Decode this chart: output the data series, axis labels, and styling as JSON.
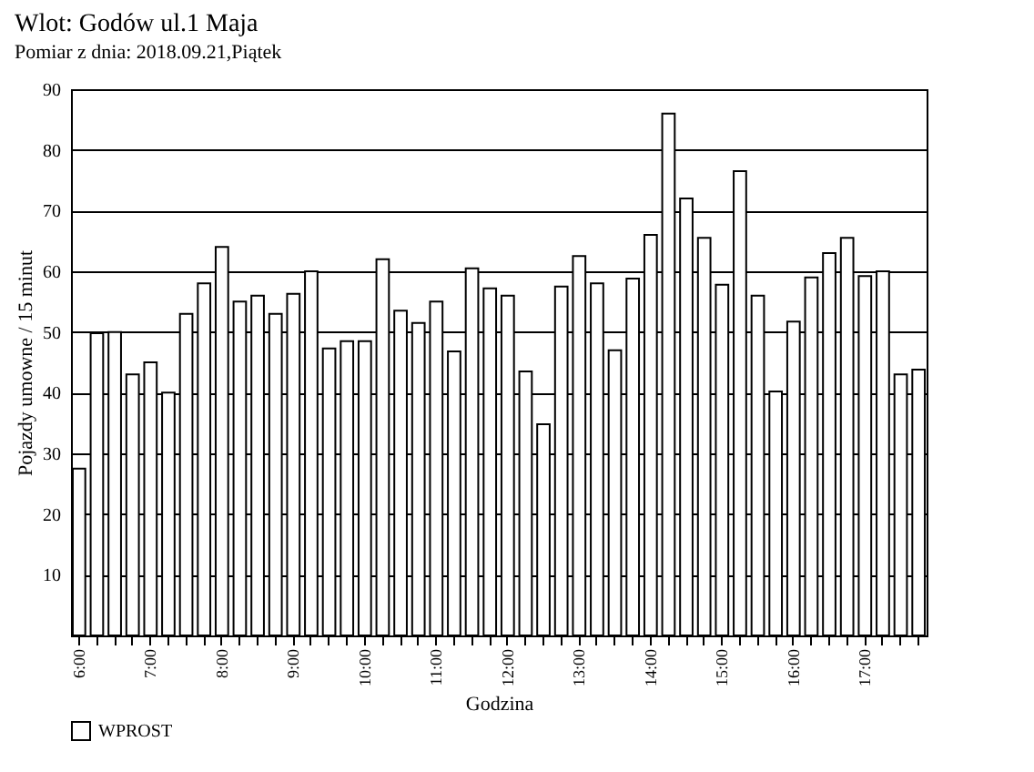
{
  "chart_data": {
    "type": "bar",
    "title": "Wlot: Godów ul.1 Maja",
    "subtitle": "Pomiar z dnia: 2018.09.21,Piątek",
    "xlabel": "Godzina",
    "ylabel": "Pojazdy umowne / 15 minut",
    "categories": [
      "6:00",
      null,
      null,
      null,
      "7:00",
      null,
      null,
      null,
      "8:00",
      null,
      null,
      null,
      "9:00",
      null,
      null,
      null,
      "10:00",
      null,
      null,
      null,
      "11:00",
      null,
      null,
      null,
      "12:00",
      null,
      null,
      null,
      "13:00",
      null,
      null,
      null,
      "14:00",
      null,
      null,
      null,
      "15:00",
      null,
      null,
      null,
      "16:00",
      null,
      null,
      null,
      "17:00",
      null,
      null,
      null
    ],
    "series": [
      {
        "name": "WPROST",
        "color": "#ffffff",
        "values": [
          27.5,
          49.8,
          50,
          43,
          45,
          40,
          53,
          58,
          64,
          55,
          56,
          53,
          56.3,
          60,
          47.3,
          48.5,
          48.5,
          62,
          53.5,
          51.5,
          55,
          46.8,
          60.5,
          57.2,
          56,
          43.5,
          34.8,
          57.5,
          62.5,
          58,
          47,
          58.8,
          66,
          86,
          72,
          65.5,
          57.8,
          76.5,
          56,
          40.2,
          51.7,
          59,
          63,
          65.5,
          59.2,
          60,
          43,
          43.8
        ]
      }
    ],
    "ylim": [
      0,
      90
    ],
    "yticks": [
      10,
      20,
      30,
      40,
      50,
      60,
      70,
      80,
      90
    ],
    "grid": "y",
    "legend": "bottom"
  }
}
